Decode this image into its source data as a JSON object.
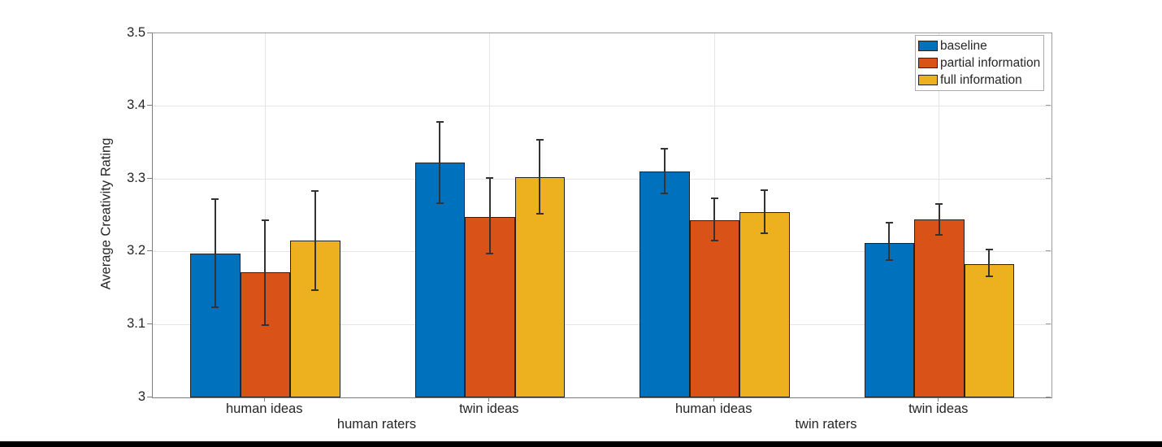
{
  "figure": {
    "background": "#ffffff",
    "bottom_bar_color": "#000000",
    "axis_color": "#7d7d7d",
    "grid_color": "#e5e5e5",
    "text_color": "#262626"
  },
  "chart_data": {
    "type": "bar",
    "title": "",
    "xlabel": "",
    "ylabel": "Average Creativity Rating",
    "ylim": [
      3,
      3.5
    ],
    "yticks": [
      3,
      3.1,
      3.2,
      3.3,
      3.4,
      3.5
    ],
    "ytick_labels": [
      "3",
      "3.1",
      "3.2",
      "3.3",
      "3.4",
      "3.5"
    ],
    "grid": true,
    "legend_position": "top-right",
    "x_categories": [
      "human ideas",
      "twin ideas",
      "human ideas",
      "twin ideas"
    ],
    "x_supercategories": [
      "human raters",
      "twin raters"
    ],
    "series": [
      {
        "name": "baseline",
        "color": "#0072BD",
        "values": [
          3.197,
          3.322,
          3.31,
          3.212
        ],
        "err_high": [
          3.272,
          3.378,
          3.341,
          3.24
        ],
        "err_low": [
          3.124,
          3.267,
          3.28,
          3.189
        ]
      },
      {
        "name": "partial information",
        "color": "#D95319",
        "values": [
          3.172,
          3.248,
          3.243,
          3.244
        ],
        "err_high": [
          3.243,
          3.301,
          3.273,
          3.266
        ],
        "err_low": [
          3.099,
          3.197,
          3.215,
          3.223
        ]
      },
      {
        "name": "full information",
        "color": "#EDB120",
        "values": [
          3.215,
          3.303,
          3.255,
          3.183
        ],
        "err_high": [
          3.283,
          3.354,
          3.285,
          3.203
        ],
        "err_low": [
          3.147,
          3.252,
          3.226,
          3.166
        ]
      }
    ],
    "legend": [
      "baseline",
      "partial information",
      "full information"
    ]
  }
}
